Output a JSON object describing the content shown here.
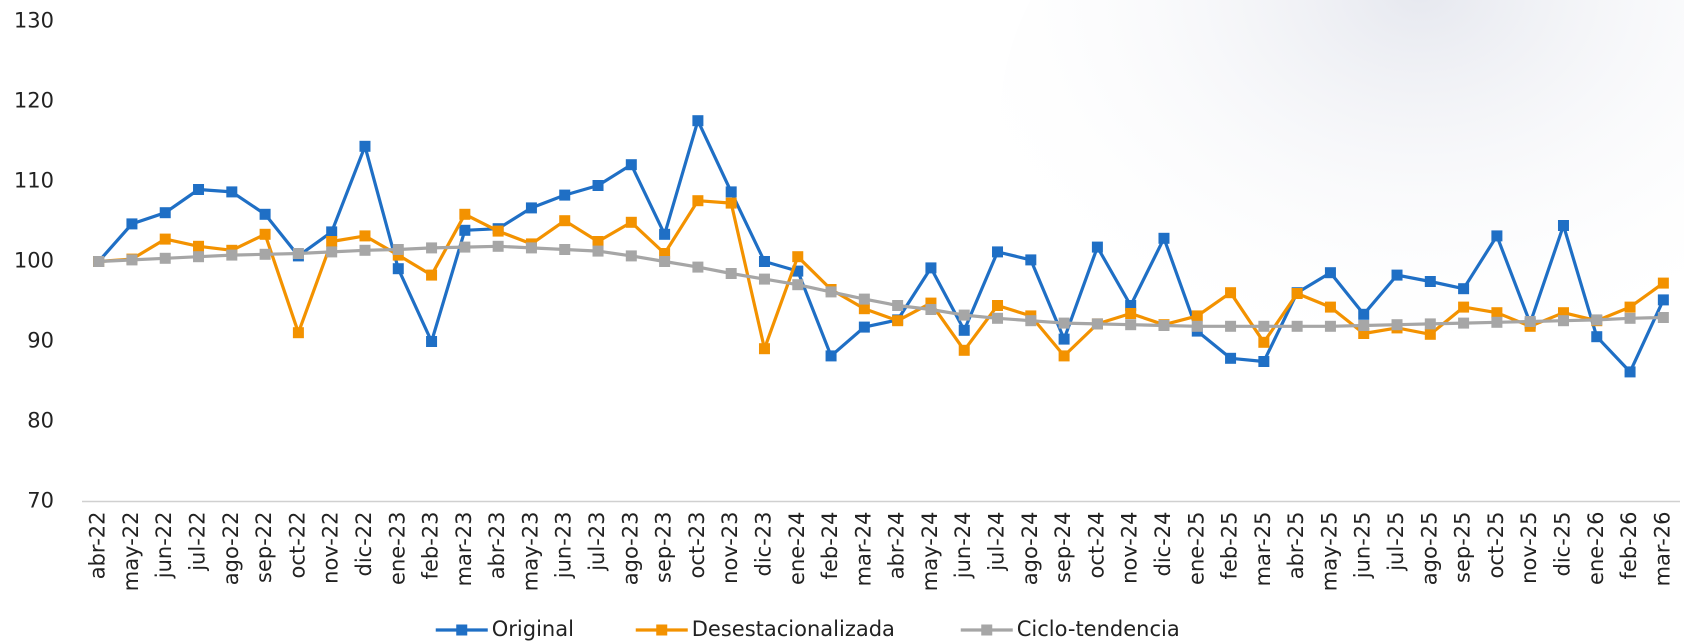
{
  "chart_data": {
    "type": "line",
    "categories": [
      "abr-22",
      "may-22",
      "jun-22",
      "jul-22",
      "ago-22",
      "sep-22",
      "oct-22",
      "nov-22",
      "dic-22",
      "ene-23",
      "feb-23",
      "mar-23",
      "abr-23",
      "may-23",
      "jun-23",
      "jul-23",
      "ago-23",
      "sep-23",
      "oct-23",
      "nov-23",
      "dic-23",
      "ene-24",
      "feb-24",
      "mar-24",
      "abr-24",
      "may-24",
      "jun-24",
      "jul-24",
      "ago-24",
      "sep-24",
      "oct-24",
      "nov-24",
      "dic-24",
      "ene-25",
      "feb-25",
      "mar-25",
      "abr-25",
      "may-25",
      "jun-25",
      "jul-25",
      "ago-25",
      "sep-25",
      "oct-25",
      "nov-25",
      "dic-25",
      "ene-26",
      "feb-26",
      "mar-26"
    ],
    "series": [
      {
        "name": "Original",
        "color": "#1f6fc5",
        "values": [
          100,
          104.7,
          106.1,
          109,
          108.7,
          105.9,
          100.7,
          103.7,
          114.4,
          99.1,
          90.0,
          103.9,
          104.1,
          106.7,
          108.3,
          109.5,
          112.1,
          103.4,
          117.6,
          108.7,
          100.0,
          98.8,
          88.2,
          91.8,
          92.7,
          99.2,
          91.4,
          101.2,
          100.2,
          90.3,
          101.8,
          94.5,
          102.9,
          91.3,
          87.9,
          87.5,
          96.1,
          98.6,
          93.4,
          98.3,
          97.5,
          96.6,
          103.2,
          92.3,
          104.5,
          90.6,
          86.2,
          95.2
        ]
      },
      {
        "name": "Desestacionalizada",
        "color": "#f39200",
        "values": [
          100,
          100.3,
          102.8,
          101.9,
          101.4,
          103.4,
          91.1,
          102.5,
          103.2,
          100.8,
          98.3,
          105.9,
          103.8,
          102.2,
          105.1,
          102.5,
          104.9,
          101.0,
          107.6,
          107.3,
          89.1,
          100.6,
          96.5,
          94.1,
          92.6,
          94.8,
          88.9,
          94.5,
          93.2,
          88.2,
          92.2,
          93.5,
          92.1,
          93.2,
          96.1,
          89.9,
          96.0,
          94.3,
          91.0,
          91.7,
          90.9,
          94.3,
          93.6,
          91.9,
          93.6,
          92.6,
          94.3,
          97.3
        ]
      },
      {
        "name": "Ciclo-tendencia",
        "color": "#a6a6a6",
        "values": [
          100,
          100.2,
          100.4,
          100.6,
          100.8,
          100.9,
          101.0,
          101.2,
          101.4,
          101.5,
          101.7,
          101.8,
          101.9,
          101.7,
          101.5,
          101.3,
          100.7,
          100.0,
          99.3,
          98.5,
          97.8,
          97.1,
          96.2,
          95.3,
          94.5,
          94.0,
          93.3,
          92.9,
          92.6,
          92.3,
          92.2,
          92.1,
          92.0,
          91.9,
          91.9,
          91.9,
          91.9,
          91.9,
          92.0,
          92.1,
          92.2,
          92.3,
          92.4,
          92.5,
          92.6,
          92.7,
          92.9,
          93.0
        ]
      }
    ],
    "ylim": [
      70,
      130
    ],
    "yticks": [
      70,
      80,
      90,
      100,
      110,
      120,
      130
    ],
    "grid": false,
    "legend": "bottom"
  }
}
